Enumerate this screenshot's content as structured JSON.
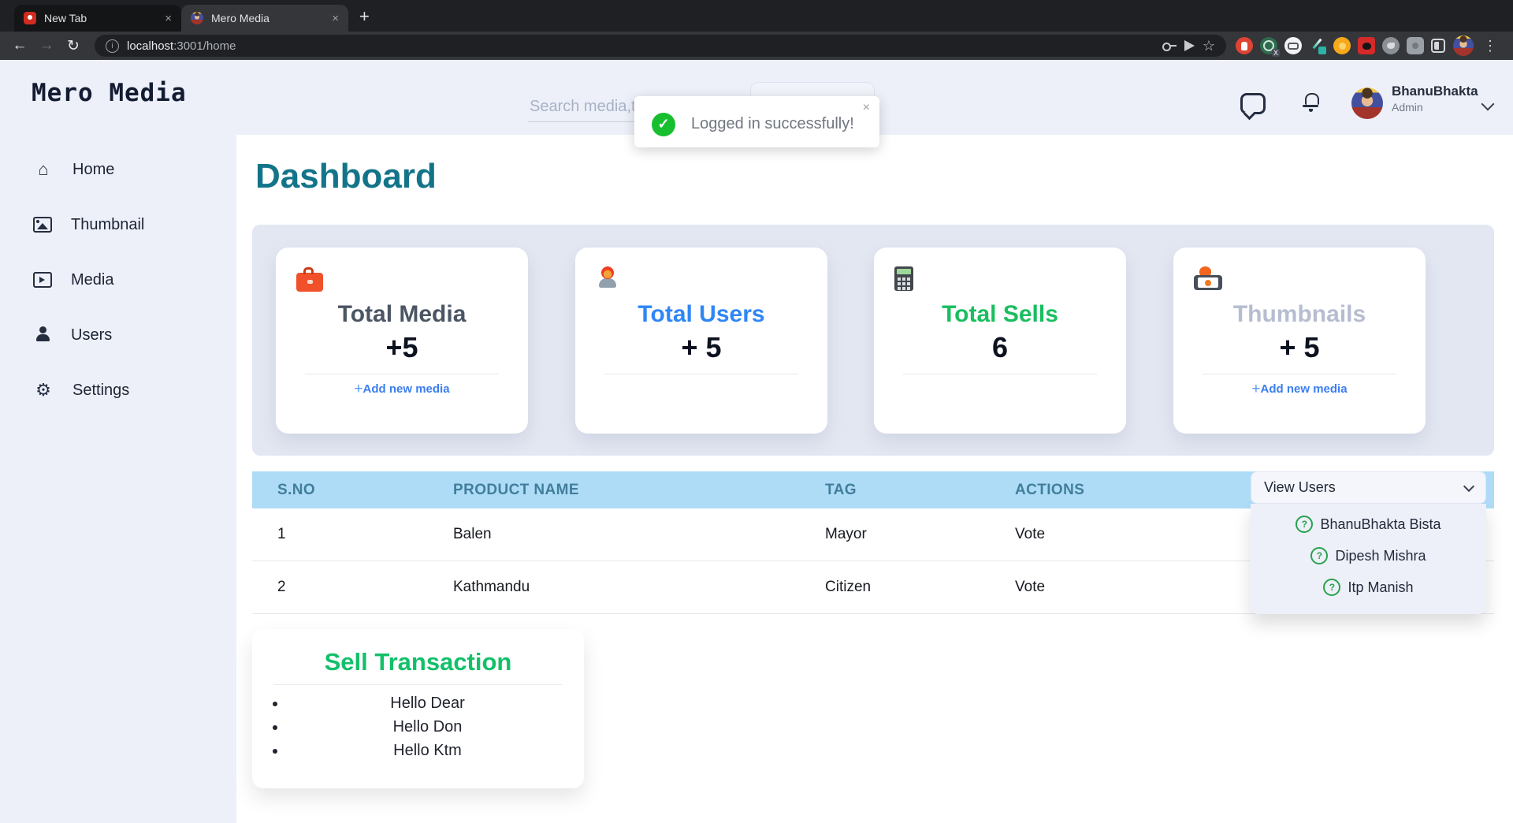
{
  "glyphs": {
    "close": "×",
    "plus_tab": "+",
    "back": "←",
    "forward": "→",
    "reload": "↻",
    "star": "☆",
    "dots": "⋮",
    "info": "i",
    "check": "✓",
    "question": "?",
    "home": "⌂",
    "gear": "⚙",
    "link_plus": "+"
  },
  "browser": {
    "tabs": [
      {
        "title": "New Tab"
      },
      {
        "title": "Mero Media"
      }
    ],
    "url_host": "localhost",
    "url_rest": ":3001/home"
  },
  "sidebar": {
    "logo": "Mero Media",
    "items": [
      {
        "label": "Home"
      },
      {
        "label": "Thumbnail"
      },
      {
        "label": "Media"
      },
      {
        "label": "Users"
      },
      {
        "label": "Settings"
      }
    ]
  },
  "header": {
    "search_placeholder": "Search media,thumbnail...",
    "user_name": "BhanuBhakta",
    "user_role": "Admin"
  },
  "toast": {
    "message": "Logged in successfully!"
  },
  "main": {
    "title": "Dashboard"
  },
  "cards": [
    {
      "title": "Total Media",
      "value": "+5",
      "link": "Add new media"
    },
    {
      "title": "Total Users",
      "value": "+ 5"
    },
    {
      "title": "Total Sells",
      "value": "6"
    },
    {
      "title": "Thumbnails",
      "value": "+ 5",
      "link": "Add new media"
    }
  ],
  "table": {
    "headers": [
      "S.NO",
      "PRODUCT NAME",
      "TAG",
      "ACTIONS"
    ],
    "rows": [
      {
        "sno": "1",
        "product": "Balen",
        "tag": "Mayor",
        "action": "Vote"
      },
      {
        "sno": "2",
        "product": "Kathmandu",
        "tag": "Citizen",
        "action": "Vote"
      }
    ]
  },
  "users_dropdown": {
    "label": "View Users",
    "options": [
      {
        "name": "BhanuBhakta Bista"
      },
      {
        "name": "Dipesh Mishra"
      },
      {
        "name": "Itp Manish"
      }
    ]
  },
  "sell": {
    "title": "Sell Transaction",
    "items": [
      {
        "text": "Hello Dear"
      },
      {
        "text": "Hello Don"
      },
      {
        "text": "Hello Ktm"
      }
    ]
  },
  "colors": {
    "accent_teal": "#137489",
    "table_header_blue": "#aedcf7",
    "link_blue": "#3b7df0",
    "toast_green": "#17bf2e",
    "sell_green": "#12c06a",
    "users_blue": "#2f86f6",
    "sells_green": "#19be5f",
    "thumbs_gray": "#b6bdd1"
  }
}
